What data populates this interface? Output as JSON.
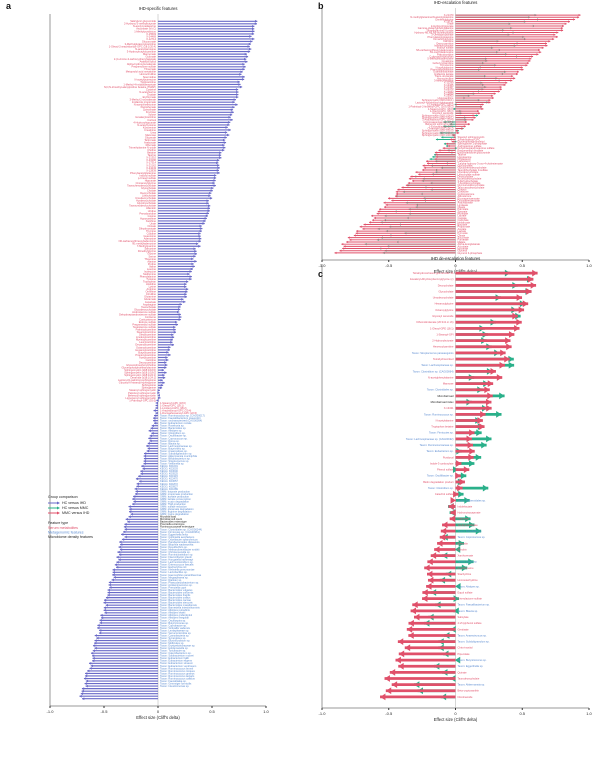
{
  "colors": {
    "hc_vs_ihd": "#6a6ac8",
    "hc_vs_mmc": "#2ab08a",
    "mmc_vs_ihd": "#e0506a",
    "serum_metabolite": "#e0506a",
    "metagenomic_feature": "#5a8ad0",
    "microbiome_density": "#222222",
    "axis": "#333333"
  },
  "legend": {
    "group_title": "Group comparison",
    "groups": [
      "HC versus IHD",
      "HC versus MMC",
      "MMC versus IHD"
    ],
    "feature_title": "Feature type",
    "features": [
      "Serum metabolites",
      "Metagenomic features",
      "Microbiome density features"
    ]
  },
  "chart_data": [
    {
      "panel": "a",
      "type": "scatter",
      "title": "IHD-specific features",
      "xlabel": "Effect size (Cliff's delta)",
      "xlim": [
        -1.0,
        1.0
      ],
      "xticks": [
        "-1.0",
        "-0.5",
        "0",
        "0.5",
        "1.0"
      ],
      "series": [
        {
          "name": "HC versus IHD",
          "count": 269,
          "start": 0.92,
          "end": -0.72
        }
      ],
      "metabolite_count": 150,
      "labels": [
        "Salicyluric glucuronide",
        "2-Hydroxy-3-methylbutyrate",
        "N-acetyl-cadaverine",
        "Ascorbate (Vit C)",
        "1-Methylpyridinium",
        "X-15503",
        "X-24469",
        "X-12714",
        "Glucuronate",
        "3-Methylglutaconylcarnitine",
        "1-Oleoyl-2-arachidonoyl-GPC (18:1/20:4)",
        "N-acetylcarnosine",
        "3-Hydroxybutyrylcarnitine",
        "Mannonate",
        "Gulonate",
        "2-(4-Amino-3-carboxyphenyl)acetate",
        "Arabitol/Xylitol",
        "Alpha-hydroxyisovalerate",
        "Pregnenolone sulfate",
        "Threonate",
        "Metoprolol acid metabolite",
        "Homocitrulline",
        "Spermidine",
        "N-acetylputrescine",
        "Tiglylcarnitine",
        "1-Methyl-4-imidazoleacetate",
        "N,N,N-trimethyl-alanylproline betaine (TMAP)",
        "Cysteine",
        "N-acetylserine",
        "Oxalate",
        "Erythronate",
        "3-Methyl-2-oxovalerate",
        "Imidazole propionate",
        "N-acetylmethionine",
        "Pantothenate",
        "Quinolinate",
        "Fructose",
        "Xylose",
        "Isovalerylcarnitine",
        "Cortisol",
        "4-Hydroxyhippurate",
        "N-acetyltyrosine",
        "Kynurenine",
        "Creatinine",
        "Urea",
        "Mannose",
        "Glycerate",
        "Tartronate",
        "Arabonate",
        "Ribonate",
        "Trimethylamine N-oxide",
        "Choline",
        "Betaine",
        "Taurine",
        "X-21310",
        "X-23196",
        "X-17314",
        "X-22162",
        "X-24243",
        "X-12839",
        "Phenylacetylglutamine",
        "Indoxyl sulfate",
        "p-Cresol sulfate",
        "Hippurate",
        "Cinnamoylglycine",
        "Taurochenodeoxycholate",
        "Glycocholate",
        "Cholate",
        "Deoxycholate",
        "Lithocholate",
        "Ursodeoxycholate",
        "Hyodeoxycholate",
        "Glycohyocholate",
        "Tauroursodeoxycholate",
        "Allantoin",
        "Uridine",
        "Pseudouridine",
        "Inosine",
        "Hypoxanthine",
        "Xanthine",
        "Urate",
        "Orotate",
        "Dihydroorotate",
        "Thymine",
        "Cytidine",
        "Guanosine",
        "Adenosine",
        "N6-carbamoylthreonyladenosine",
        "N1-methyladenosine",
        "7-Methylguanine",
        "Sarcosine",
        "Dimethylglycine",
        "Glycine",
        "Serine",
        "Threonine",
        "Alanine",
        "Proline",
        "Valine",
        "Leucine",
        "Isoleucine",
        "Methionine",
        "Phenylalanine",
        "Tyrosine",
        "Tryptophan",
        "Histidine",
        "Lysine",
        "Arginine",
        "Ornithine",
        "Citrulline",
        "Glutamine",
        "Glutamate",
        "Aspartate",
        "Asparagine",
        "Taurocholate",
        "Glycodeoxycholate",
        "Androsterone sulfate",
        "Dehydroepiandrosterone sulfate",
        "Cortisone",
        "Corticosterone",
        "Estrone sulfate",
        "Pregnenediol sulfate",
        "Testosterone sulfate",
        "Palmitoylcarnitine",
        "Stearoylcarnitine",
        "Oleoylcarnitine",
        "Linoleoylcarnitine",
        "Myristoylcarnitine",
        "Laurylcarnitine",
        "Decanoylcarnitine",
        "Octanoylcarnitine",
        "Hexanoylcarnitine",
        "Butyrylcarnitine",
        "Propionylcarnitine",
        "Acetylcarnitine",
        "Carnitine",
        "Deoxycarnitine",
        "Glycerophosphorylcholine",
        "Glycerophosphoethanolamine",
        "Sphingomyelin (d18:1/16:0)",
        "Sphingomyelin (d18:1/18:0)",
        "Sphingomyelin (d18:1/24:1)",
        "Ceramide (d18:1/24:1)",
        "Lactosyl-N-palmitoyl-sphingosine",
        "Glycosyl-N-stearoyl-sphingosine",
        "Sphingosine",
        "Sphinganine",
        "Stearoyl sphingomyelin",
        "Palmitoyl sphingomyelin",
        "Behenoyl sphingomyelin",
        "Lignoceroyl sphingomyelin",
        "1-Palmitoyl-GPC (16:0)",
        "1-Stearoyl-GPC (18:0)",
        "1-Oleoyl-GPC (18:1)",
        "1-Linoleoyl-GPC (18:2)",
        "1-Arachidonoyl-GPC (20:4)",
        "1-Docosahexaenoyl-GPC (22:6)",
        "Taxon: Ruminococcus sp. (CAG00017)",
        "Taxon: Faecalibacterium prausnitzii",
        "Taxon: uncharacterized (CAG00054)",
        "Taxon: Eubacterium rectale",
        "Taxon: Roseburia sp.",
        "Taxon: Bacteroides sp.",
        "Taxon: Alistipes sp.",
        "Taxon: Clostridium sp.",
        "Taxon: Oscillibacter sp.",
        "Taxon: Coprococcus sp.",
        "Taxon: Dorea sp.",
        "Taxon: Blautia sp.",
        "Taxon: Lachnospiraceae sp.",
        "Taxon: Butyrivibrio sp.",
        "Taxon: Anaerostipes sp.",
        "Taxon: Subdoligranulum sp.",
        "Taxon: Akkermansia muciniphila",
        "Taxon: Bifidobacterium sp.",
        "Taxon: Streptococcus sp.",
        "Taxon: Veillonella sp.",
        "KEGG: K01001",
        "KEGG: K02003",
        "KEGG: K03046",
        "KEGG: K00525",
        "KEGG: K01915",
        "KEGG: K02470",
        "KEGG: K03657",
        "KEGG: K01872",
        "KEGG: K00927",
        "KEGG: K01689",
        "GMM: butyrate production",
        "GMM: propionate production",
        "GMM: acetate production",
        "GMM: lactate consumption",
        "GMM: mucin degradation",
        "GMM: TMA production",
        "GMM: sulfate reduction",
        "GMM: glutamate degradation",
        "GMM: arginine degradation",
        "GMM: lysine degradation",
        "Microbial load",
        "Microbial cell count",
        "Bacteroides enterotype",
        "Prevotella enterotype",
        "Ruminococcaceae enterotype",
        "Taxon: Clostridiales sp. (CAG00244)",
        "Taxon: Firmicutes sp. (CAG00361)",
        "Taxon: Eggerthella lenta",
        "Taxon: Collinsella aerofaciens",
        "Taxon: Odoribacter splanchnicus",
        "Taxon: Parabacteroides distasonis",
        "Taxon: Bilophila wadsworthia",
        "Taxon: Desulfovibrio sp.",
        "Taxon: Methanobrevibacter smithii",
        "Taxon: Christensenella sp.",
        "Taxon: Ruminiclostridium sp.",
        "Taxon: Flavonifractor plautii",
        "Taxon: Hungatella hathewayi",
        "Taxon: Lachnoclostridium sp.",
        "Taxon: Enterococcus faecalis",
        "Taxon: Escherichia coli",
        "Taxon: Klebsiella pneumoniae",
        "Taxon: Lactobacillus sp.",
        "Taxon: Haemophilus parainfluenzae",
        "Taxon: Megasphaera sp.",
        "Taxon: Dialister sp.",
        "Taxon: Phascolarctobacterium sp.",
        "Taxon: Acidaminococcus sp.",
        "Taxon: Prevotella copri",
        "Taxon: Bacteroides vulgatus",
        "Taxon: Bacteroides uniformis",
        "Taxon: Bacteroides fragilis",
        "Taxon: Bacteroides ovatus",
        "Taxon: Bacteroides caccae",
        "Taxon: Bacteroides stercoris",
        "Taxon: Bacteroides massiliensis",
        "Taxon: Barnesiella intestinihominis",
        "Taxon: Alistipes putredinis",
        "Taxon: Alistipes shahii",
        "Taxon: Alistipes onderdonkii",
        "Taxon: Alistipes finegoldii",
        "Taxon: Oscillospira sp.",
        "Taxon: Butyricimonas sp.",
        "Taxon: Coprobacter sp.",
        "Taxon: Victivallis vadensis",
        "Taxon: Lentisphaerae sp.",
        "Taxon: Verrucomicrobia sp.",
        "Taxon: Cyanobacteria sp.",
        "Taxon: Synergistes sp.",
        "Taxon: Elusimicrobium sp.",
        "Taxon: Mollicutes sp.",
        "Taxon: Erysipelotrichaceae sp.",
        "Taxon: Holdemanella sp.",
        "Taxon: Turicibacter sp.",
        "Taxon: Catenibacterium sp.",
        "Taxon: Solobacterium moorei",
        "Taxon: Eubacterium hallii",
        "Taxon: Eubacterium eligens",
        "Taxon: Eubacterium siraeum",
        "Taxon: Eubacterium ventriosum",
        "Taxon: Ruminococcus bromii",
        "Taxon: Ruminococcus torques",
        "Taxon: Ruminococcus gnavus",
        "Taxon: Ruminococcus lactaris",
        "Taxon: Ruminococcus callidus",
        "Taxon: Faecalitalea sp.",
        "Taxon: Gemmiger formicilis",
        "Taxon: Intestinimonas sp."
      ]
    },
    {
      "panel": "b",
      "type": "scatter",
      "title": "IHD-escalation features",
      "xlabel": "Effect size (Cliff's delta)",
      "xlim": [
        -1.0,
        1.0
      ],
      "xticks": [
        "-1.0",
        "-0.5",
        "0",
        "0.5",
        "1.0"
      ],
      "series": [
        {
          "name": "HC versus MMC",
          "count": 110,
          "start": 0.55,
          "end": -0.6
        },
        {
          "name": "MMC versus IHD",
          "count": 110,
          "start": 0.92,
          "end": -0.9
        }
      ],
      "labels": [
        "X-21470",
        "N-methylglutamine/N-acetylglutamine",
        "Dimethylglycine",
        "X-19141",
        "Urate",
        "2-Hydroxyhippurate",
        "Gamma-glutamylphenylalanine",
        "Trimethylamine N-oxide",
        "Hydroxy-N6,N6,N6-trimethyllysine",
        "3-Ureidopropionate",
        "Phenylacetylglutamine",
        "Cinnamoylglycine",
        "Carnitine",
        "Deoxycarnitine",
        "Indolepropionate",
        "Indoxyl sulfate",
        "N6-carbamoylthreonyladenosine",
        "N1-methyladenosine",
        "Pseudouridine",
        "C-glycosyltryptophan",
        "5-Methylthioadenosine",
        "Creatinine",
        "Isobutyrylcarnitine",
        "Kynurenine",
        "N-acetylalanine",
        "Phenylalanylalanine",
        "Guanidinoacetate",
        "Imidazole lactate",
        "Trans-urocanate",
        "Homocitrulline",
        "3-Methylhistidine",
        "X-11299",
        "X-12465",
        "X-21467",
        "X-24473",
        "X-23680",
        "X-12850",
        "X-25003",
        "Hypoxanthine",
        "Sphingomyelin (d18:2/24:1)",
        "Lactosyl-N-palmitoyl-sphingosine",
        "1-Linoleoyl-GPC (18:2)",
        "1-Palmitoyl-2-linoleoyl-GPC (16:0/18:2)",
        "1-Stearoyl-GPC (18:0)",
        "1-Oleoyl-GPC (18:1)",
        "Glycosyl ceramide",
        "Sphingomyelin (d18:1/14:0)",
        "Sphingomyelin (d18:1/18:1)",
        "1-Arachidonoyl-GPC (20:4)",
        "1-Docosapentaenoyl-GPC",
        "Behenoyl sphingomyelin",
        "1-Eicosadienoyl-GPC",
        "Ceramide (d18:1/24:1)",
        "Sphingomyelin (d18:1/25:0)",
        "Sphingomyelin (d17:1/16:0)",
        "Sphingomyelin (d18:1/20:0)",
        "Stearoyl sphingomyelin",
        "1-Palmitoleoyl-GPC",
        "Glycerophosphoinositol",
        "Sphingosine 1-phosphate",
        "Androsterone sulfate",
        "Dehydroepiandrosterone sulfate",
        "Pregnenediol disulfate",
        "Etiocholanolone glucuronide",
        "Taurine",
        "Hypotaurine",
        "Cholesterol",
        "Lathosterol",
        "7-alpha-hydroxy-3-oxo-4-cholestenoate",
        "Glycocholate",
        "Glycochenodeoxycholate",
        "Taurolithocholate 3-sulfate",
        "Ursodeoxycholate",
        "Lithocholate sulfate",
        "Deoxycholate",
        "Isoursodeoxycholate",
        "3-Dehydrocholate",
        "7-Ketodeoxycholate",
        "Glycoursodeoxycholate",
        "Tauroursodeoxycholate",
        "Cortisol",
        "Cortisone",
        "Corticosterone",
        "Aldosterone",
        "Eicosapentaenoate",
        "Docosahexaenoate",
        "Arachidonate",
        "Linoleate",
        "Oleate",
        "Palmitate",
        "Stearate",
        "Myristate",
        "Laurate",
        "Caprate",
        "Caprylate",
        "Hexanoate",
        "Butyrate",
        "Propionate",
        "Acetate",
        "Lactate",
        "Pyruvate",
        "Citrate",
        "Succinate",
        "Fumarate",
        "Malate",
        "Alpha-ketoglutarate",
        "Aconitate",
        "Isocitrate",
        "Glycerol",
        "Glycerol 3-phosphate"
      ]
    },
    {
      "panel": "c",
      "type": "scatter",
      "title": "IHD de-escalation features",
      "xlabel": "Effect size (Cliff's delta)",
      "xlim": [
        -1.0,
        1.0
      ],
      "xticks": [
        "-1.0",
        "-0.5",
        "0",
        "0.5",
        "1.0"
      ],
      "series": [
        {
          "name": "HC versus MMC",
          "count": 70,
          "start": 0.45,
          "end": -0.2
        },
        {
          "name": "MMC versus IHD",
          "count": 70,
          "start": 0.6,
          "end": -0.55
        }
      ],
      "labels": [
        "Tetrahydrocortisone glucuronide 3A",
        "Isovaleryl-dihydroxybenzoylglycine (c)",
        "Deoxycholate",
        "Glycocholate",
        "Ursodeoxycholate",
        "Hexanoylglycine",
        "Octanoylglycine",
        "Glycosyl ceramide",
        "Dihomolinolenate (20:3n3 or n6)",
        "1-Oleoyl-GPE (18:1)",
        "1-Stearoyl-GPI",
        "2-Hydroxybutyrate",
        "Hexenoylcarnitine",
        "Taxon: Streptococcus parasanguinis",
        "Tetrahydrocortisol",
        "Taxon: Lachnospiraceae sp.",
        "Taxon: Clostridium sp. (CAG00064)",
        "N-acetylphenylalanine",
        "Mannose",
        "Taxon: Clostridiales sp.",
        "Microbial load",
        "Microbial load index",
        "X-13431",
        "Taxon: Ruminococcus sp.",
        "N-acetylalanine",
        "Tryptophan betaine",
        "Taxon: Firmicutes sp.",
        "Taxon: Lachnospiraceae sp. (CAG00192)",
        "Taxon: Ruminococcaceae sp.",
        "Taxon: Eubacterium sp.",
        "Pyridoxal",
        "Indole-3-carboxylate",
        "Phenol sulfate",
        "Taxon: Oscillibacter sp.",
        "Biotin degradation product",
        "Taxon: Clostridium sp.",
        "Catechol sulfate",
        "Taxon: Bacteroidales sp.",
        "Indolelactate",
        "Hydroxyisocaproate",
        "Hippurate",
        "Vanillylmandelate",
        "Taxon: Roseburia sp.",
        "Taxon: Coprococcus sp.",
        "Biliverdin",
        "Bilirubin",
        "Xanthurenate",
        "Taxon: Dorea sp.",
        "Ergothioneine",
        "Stachydrine",
        "Homostachydrine",
        "Taxon: Alistipes sp.",
        "Equol sulfate",
        "Enterolactone sulfate",
        "Taxon: Faecalibacterium sp.",
        "Taxon: Blautia sp.",
        "Salicylate",
        "4-Vinylphenol sulfate",
        "Gentisate",
        "Taxon: Anaerotruncus sp.",
        "Taxon: Subdoligranulum sp.",
        "Chiro-inositol",
        "Pipecolate",
        "Taxon: Butyricicoccus sp.",
        "Taxon: Eggerthella sp.",
        "Quinate",
        "Taurodeoxycholate",
        "Taxon: Akkermansia sp.",
        "Beta-cryptoxanthin",
        "Nicotinamide"
      ]
    }
  ]
}
